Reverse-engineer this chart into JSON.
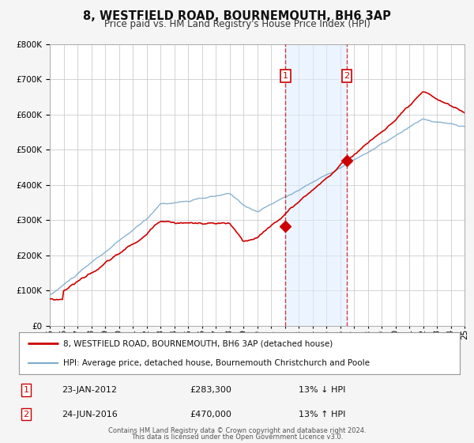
{
  "title": "8, WESTFIELD ROAD, BOURNEMOUTH, BH6 3AP",
  "subtitle": "Price paid vs. HM Land Registry's House Price Index (HPI)",
  "legend_line1": "8, WESTFIELD ROAD, BOURNEMOUTH, BH6 3AP (detached house)",
  "legend_line2": "HPI: Average price, detached house, Bournemouth Christchurch and Poole",
  "transaction1_date": "23-JAN-2012",
  "transaction1_price": "£283,300",
  "transaction1_pct": "13% ↓ HPI",
  "transaction2_date": "24-JUN-2016",
  "transaction2_price": "£470,000",
  "transaction2_pct": "13% ↑ HPI",
  "footer1": "Contains HM Land Registry data © Crown copyright and database right 2024.",
  "footer2": "This data is licensed under the Open Government Licence v3.0.",
  "red_color": "#cc0000",
  "blue_color": "#7eaacc",
  "bg_color": "#f5f5f5",
  "plot_bg": "#ffffff",
  "grid_color": "#cccccc",
  "shade_color": "#ddeeff",
  "ylim_min": 0,
  "ylim_max": 800000,
  "year_start": 1995,
  "year_end": 2025,
  "transaction1_year": 2012.05,
  "transaction2_year": 2016.48,
  "transaction1_price_val": 283300,
  "transaction2_price_val": 470000
}
